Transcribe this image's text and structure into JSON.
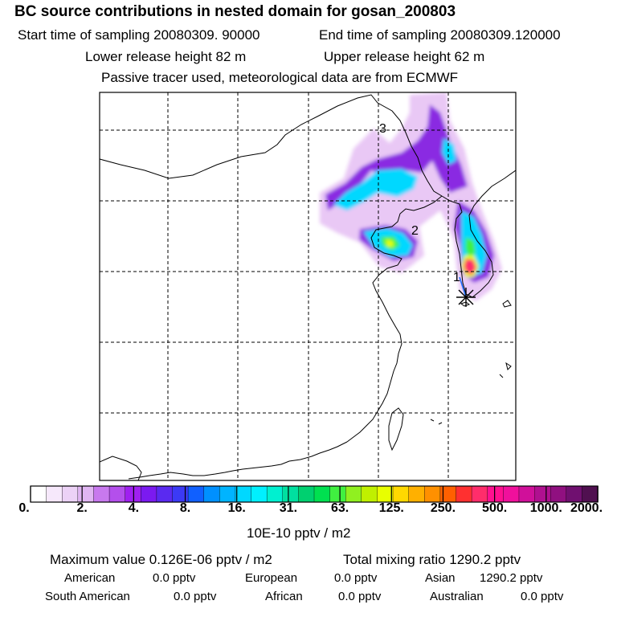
{
  "header": {
    "title": "BC  source contributions in nested domain for gosan_200803",
    "start_time": "Start time of sampling 20080309. 90000",
    "end_time": "End time of sampling 20080309.120000",
    "lower_release": "Lower release height   82 m",
    "upper_release": "Upper release height   62 m",
    "tracer_note": "Passive tracer used, meteorological data are from ECMWF"
  },
  "map": {
    "site_labels": [
      "3",
      "2",
      "1"
    ],
    "marker_icon": "star-icon",
    "plume_colors": [
      "#e9c8f5",
      "#cc66ee",
      "#8a2be2",
      "#00d8ff",
      "#00e0a0",
      "#40f040",
      "#e8ff00",
      "#ff2d6b"
    ]
  },
  "colorbar": {
    "tick_labels": [
      "0.",
      "2.",
      "4.",
      "8.",
      "16.",
      "31.",
      "63.",
      "125.",
      "250.",
      "500.",
      "1000.",
      "2000."
    ],
    "colors": [
      "#ffffff",
      "#f6e8fb",
      "#ecd2f6",
      "#e0b6f2",
      "#c879ee",
      "#b44fec",
      "#a020f0",
      "#7b1af0",
      "#5a2af0",
      "#3b3af5",
      "#1060ff",
      "#0090ff",
      "#00b4ff",
      "#00d8ff",
      "#00f0ff",
      "#00f0d0",
      "#00e0a0",
      "#00d070",
      "#00e050",
      "#40f040",
      "#90f020",
      "#c0f000",
      "#e8ff00",
      "#ffd800",
      "#ffb000",
      "#ff9000",
      "#ff6000",
      "#ff3030",
      "#ff2d6b",
      "#ff1090",
      "#f0109c",
      "#d0109a",
      "#b01090",
      "#901080",
      "#701070",
      "#501050"
    ],
    "unit": "10E-10 pptv / m2"
  },
  "stats": {
    "max_value": "Maximum value  0.126E-06 pptv / m2",
    "total_mixing": "Total mixing ratio      1290.2 pptv",
    "regions_row1": [
      {
        "name": "American",
        "value": "0.0 pptv"
      },
      {
        "name": "European",
        "value": "0.0 pptv"
      },
      {
        "name": "Asian",
        "value": "1290.2 pptv"
      }
    ],
    "regions_row2": [
      {
        "name": "South American",
        "value": "0.0 pptv"
      },
      {
        "name": "African",
        "value": "0.0 pptv"
      },
      {
        "name": "Australian",
        "value": "0.0 pptv"
      }
    ]
  }
}
